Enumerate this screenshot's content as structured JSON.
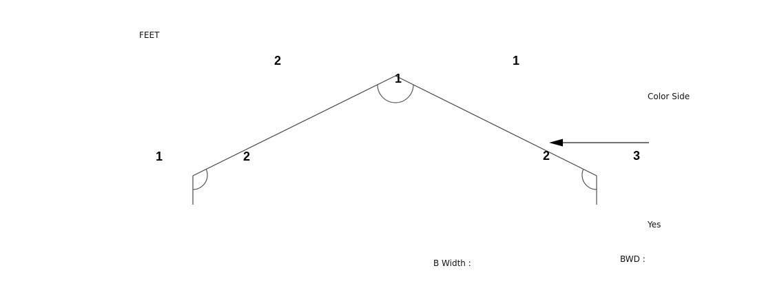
{
  "unit_label": "FEET",
  "color_side_label": "Color Side",
  "color_side_value": "Yes",
  "b_width_label": "B Width :",
  "bwd_label": "BWD :",
  "segment_numbers": {
    "top_left": "2",
    "top_right": "1",
    "apex": "1",
    "left_outer": "1",
    "left_inner": "2",
    "right_inner": "2",
    "arrow_number": "3"
  }
}
